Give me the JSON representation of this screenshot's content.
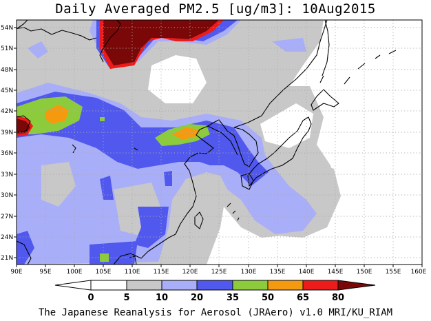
{
  "map": {
    "title": "Daily Averaged PM2.5 [ug/m3]: 10Aug2015",
    "footer": "The Japanese Reanalysis for Aerosol (JRAero) v1.0 MRI/KU_RIAM",
    "lon_range": [
      90,
      160
    ],
    "lat_range": [
      20,
      55
    ],
    "lon_ticks": [
      "90E",
      "95E",
      "100E",
      "105E",
      "110E",
      "115E",
      "120E",
      "125E",
      "130E",
      "135E",
      "140E",
      "145E",
      "150E",
      "155E",
      "160E"
    ],
    "lat_ticks": [
      "21N",
      "24N",
      "27N",
      "30N",
      "33N",
      "36N",
      "39N",
      "42N",
      "45N",
      "48N",
      "51N",
      "54N"
    ],
    "grid": "dotted",
    "coastline_color": "#000000"
  },
  "colorbar": {
    "labels": [
      "0",
      "5",
      "10",
      "20",
      "35",
      "50",
      "65",
      "80"
    ],
    "colors": [
      "#ffffff",
      "#c8c8c8",
      "#a9aef8",
      "#5058ee",
      "#8ccc3c",
      "#f59a0e",
      "#ee1b1b",
      "#7a0808"
    ]
  }
}
